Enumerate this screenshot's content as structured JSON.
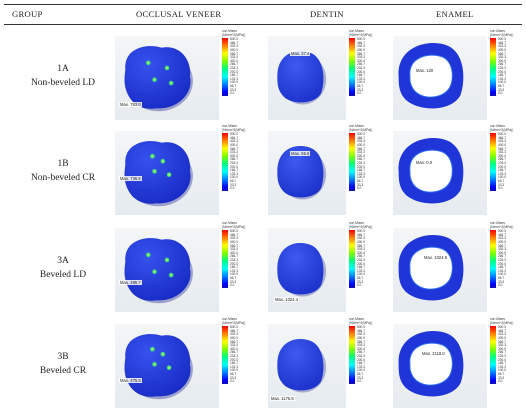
{
  "headers": {
    "group": "GROUP",
    "occlusal": "OCCLUSAL VENEER",
    "dentin": "DENTIN",
    "enamel": "ENAMEL"
  },
  "legend": {
    "title1": "von Mises",
    "title2": "(N/mm^2(MPa))",
    "ticks": [
      "500.0",
      "466.7",
      "433.3",
      "400.0",
      "366.7",
      "333.3",
      "300.0",
      "266.7",
      "233.3",
      "200.0",
      "166.7",
      "133.3",
      "100.0",
      "66.7",
      "33.3",
      "0.0"
    ]
  },
  "rows": [
    {
      "id": "1A",
      "label_line1": "1A",
      "label_line2": "Non-beveled LD",
      "occlusal_max": "Max. 783.0",
      "dentin_max": "Max. 27.4",
      "enamel_max": "Max. 120"
    },
    {
      "id": "1B",
      "label_line1": "1B",
      "label_line2": "Non-beveled CR",
      "occlusal_max": "Max. 736.5",
      "dentin_max": "Max. 55.5",
      "enamel_max": "Max. 0.0"
    },
    {
      "id": "3A",
      "label_line1": "3A",
      "label_line2": "Beveled LD",
      "occlusal_max": "Max. 485.7",
      "dentin_max": "Max. 1024.4",
      "enamel_max": "Max. 1024.6"
    },
    {
      "id": "3B",
      "label_line1": "3B",
      "label_line2": "Beveled CR",
      "occlusal_max": "Max. 475.8",
      "dentin_max": "Max. 1175.5",
      "enamel_max": "Max. 2118.0"
    }
  ],
  "colors": {
    "deep_blue": "#1f2fd6",
    "mid_blue": "#2847e8",
    "highlight_green": "#37d86a"
  }
}
